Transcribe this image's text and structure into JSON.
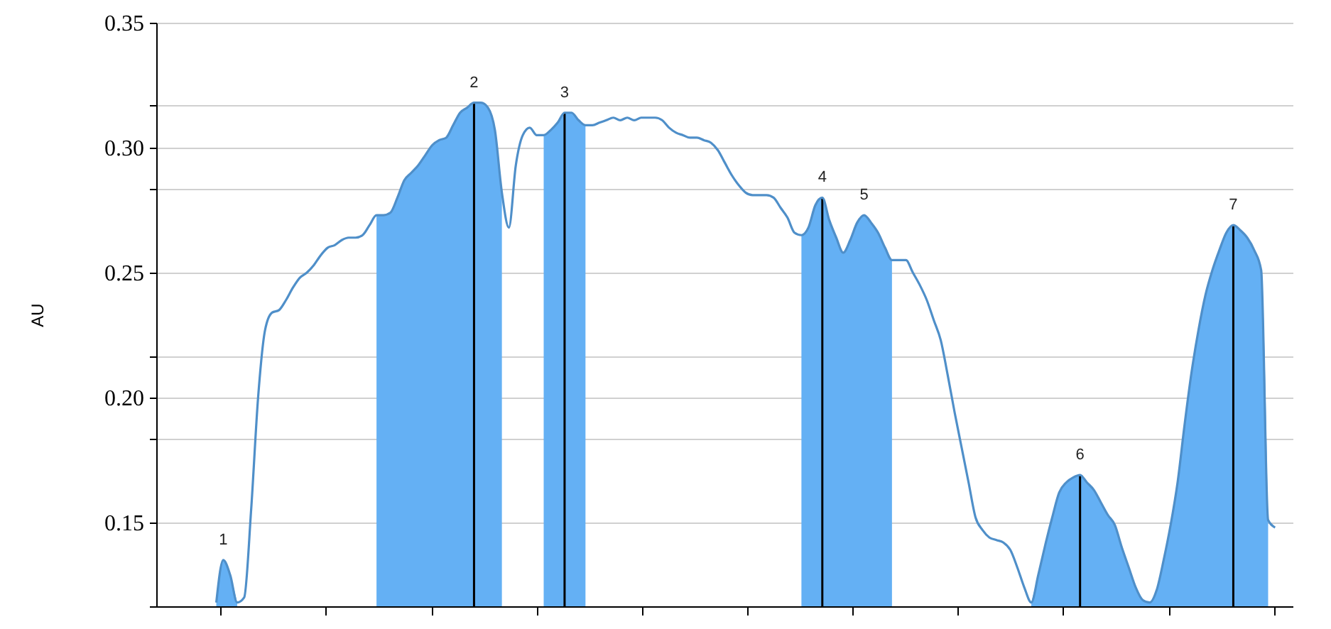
{
  "chart_data": {
    "type": "line",
    "ylabel": "AU",
    "categories": [
      null,
      null,
      null,
      null,
      null,
      null,
      null,
      null,
      null,
      null,
      null,
      null,
      null,
      null,
      null,
      null,
      null,
      null,
      null,
      null,
      null,
      null,
      null,
      null,
      null,
      null,
      null,
      null,
      null,
      null,
      null,
      null,
      null,
      null,
      null,
      null,
      null,
      null,
      null,
      null,
      null,
      null,
      null,
      null,
      null,
      null,
      null,
      null,
      null,
      null,
      null,
      null,
      null,
      null,
      null,
      null,
      null,
      null,
      null,
      null,
      null,
      null,
      null,
      null,
      null,
      null,
      null,
      null,
      null,
      null,
      null,
      null,
      null,
      null,
      null,
      null,
      null,
      null,
      null,
      null,
      null,
      null,
      null,
      null,
      null,
      null,
      null,
      null,
      null,
      null,
      null,
      null,
      null,
      null,
      null,
      null,
      null,
      null,
      null,
      null,
      null,
      null,
      null,
      null,
      null,
      null,
      null,
      null,
      null,
      null,
      null,
      null,
      null,
      null,
      null,
      null,
      null,
      null,
      null,
      null,
      null,
      null,
      null,
      null,
      null,
      null,
      null,
      null,
      null,
      null,
      null,
      null,
      null,
      null,
      null,
      null,
      null,
      null,
      null,
      null,
      null,
      null,
      null,
      null,
      null,
      null,
      null,
      null,
      null,
      null,
      null,
      null,
      null
    ],
    "ylim": [
      0.1165,
      0.35
    ],
    "yticks": [
      {
        "value": 0.35,
        "label": "0.35"
      },
      {
        "value": 0.3,
        "label": "0.30"
      },
      {
        "value": 0.25,
        "label": "0.25"
      },
      {
        "value": 0.2,
        "label": "0.20"
      },
      {
        "value": 0.15,
        "label": "0.15"
      },
      {
        "value": 0.317,
        "label": null
      },
      {
        "value": 0.2835,
        "label": null
      },
      {
        "value": 0.2165,
        "label": null
      },
      {
        "value": 0.1835,
        "label": null
      },
      {
        "value": 0.1165,
        "label": null
      }
    ],
    "grid": "y",
    "tick_labels": "y",
    "annotations": [
      {
        "text": "1",
        "y": 0.135
      },
      {
        "text": "2",
        "y": 0.318
      },
      {
        "text": "3",
        "y": 0.314
      },
      {
        "text": "4",
        "y": 0.28
      },
      {
        "text": "5",
        "y": 0.273
      },
      {
        "text": "6",
        "y": 0.169
      },
      {
        "text": "7",
        "y": 0.269
      }
    ],
    "series": [
      {
        "color": "#4f8fc9",
        "values": [
          0.118,
          0.135,
          0.129,
          0.118,
          0.12,
          0.155,
          0.2,
          0.227,
          0.234,
          0.235,
          0.239,
          0.244,
          0.248,
          0.25,
          0.253,
          0.257,
          0.26,
          0.261,
          0.263,
          0.264,
          0.264,
          0.265,
          0.269,
          0.273,
          0.273,
          0.274,
          0.28,
          0.287,
          0.29,
          0.293,
          0.297,
          0.301,
          0.303,
          0.304,
          0.309,
          0.314,
          0.316,
          0.318,
          0.318,
          0.316,
          0.307,
          0.282,
          0.268,
          0.293,
          0.305,
          0.308,
          0.305,
          0.305,
          0.307,
          0.31,
          0.314,
          0.314,
          0.311,
          0.309,
          0.309,
          0.31,
          0.311,
          0.312,
          0.311,
          0.312,
          0.311,
          0.312,
          0.312,
          0.312,
          0.311,
          0.308,
          0.306,
          0.305,
          0.304,
          0.304,
          0.303,
          0.302,
          0.299,
          0.294,
          0.289,
          0.285,
          0.282,
          0.281,
          0.281,
          0.281,
          0.28,
          0.276,
          0.272,
          0.266,
          0.265,
          0.268,
          0.277,
          0.28,
          0.271,
          0.264,
          0.258,
          0.263,
          0.27,
          0.273,
          0.27,
          0.266,
          0.26,
          0.255,
          0.255,
          0.255,
          0.25,
          0.245,
          0.239,
          0.231,
          0.223,
          0.209,
          0.194,
          0.18,
          0.166,
          0.152,
          0.147,
          0.144,
          0.143,
          0.142,
          0.139,
          0.132,
          0.124,
          0.118,
          0.129,
          0.141,
          0.152,
          0.162,
          0.166,
          0.168,
          0.169,
          0.166,
          0.163,
          0.158,
          0.153,
          0.149,
          0.14,
          0.132,
          0.124,
          0.119,
          0.118,
          0.123,
          0.135,
          0.149,
          0.166,
          0.189,
          0.21,
          0.227,
          0.241,
          0.251,
          0.259,
          0.266,
          0.269,
          0.267,
          0.264,
          0.259,
          0.251,
          0.151,
          0.148
        ]
      },
      {
        "type": "area",
        "color": "#64b0f4",
        "values": [
          0.118,
          0.135,
          0.129,
          0.118,
          null,
          null,
          null,
          null,
          null,
          null,
          null,
          null,
          null,
          null,
          null,
          null,
          null,
          null,
          null,
          null,
          null,
          null,
          null,
          0.273,
          0.273,
          0.274,
          0.28,
          0.287,
          0.29,
          0.293,
          0.297,
          0.301,
          0.303,
          0.304,
          0.309,
          0.314,
          0.316,
          0.318,
          0.318,
          0.316,
          0.307,
          0.282,
          null,
          null,
          null,
          null,
          null,
          0.305,
          0.307,
          0.31,
          0.314,
          0.314,
          0.311,
          0.309,
          null,
          null,
          null,
          null,
          null,
          null,
          null,
          null,
          null,
          null,
          null,
          null,
          null,
          null,
          null,
          null,
          null,
          null,
          null,
          null,
          null,
          null,
          null,
          null,
          null,
          null,
          null,
          null,
          null,
          null,
          0.265,
          0.268,
          0.277,
          0.28,
          0.271,
          0.264,
          0.258,
          0.263,
          0.27,
          0.273,
          0.27,
          0.266,
          0.26,
          0.255,
          null,
          null,
          null,
          null,
          null,
          null,
          null,
          null,
          null,
          null,
          null,
          null,
          null,
          null,
          null,
          null,
          null,
          null,
          null,
          0.118,
          0.129,
          0.141,
          0.152,
          0.162,
          0.166,
          0.168,
          0.169,
          0.166,
          0.163,
          0.158,
          0.153,
          0.149,
          0.14,
          0.132,
          0.124,
          0.119,
          0.118,
          0.123,
          0.135,
          0.149,
          0.166,
          0.189,
          0.21,
          0.227,
          0.241,
          0.251,
          0.259,
          0.266,
          0.269,
          0.267,
          0.264,
          0.259,
          0.251,
          0.151,
          null
        ]
      },
      {
        "type": "bar",
        "color": "#000000",
        "values": [
          null,
          null,
          null,
          null,
          null,
          null,
          null,
          null,
          null,
          null,
          null,
          null,
          null,
          null,
          null,
          null,
          null,
          null,
          null,
          null,
          null,
          null,
          null,
          null,
          null,
          null,
          null,
          null,
          null,
          null,
          null,
          null,
          null,
          null,
          null,
          null,
          null,
          0.318,
          null,
          null,
          null,
          null,
          null,
          null,
          null,
          null,
          null,
          null,
          null,
          null,
          0.314,
          null,
          null,
          null,
          null,
          null,
          null,
          null,
          null,
          null,
          null,
          null,
          null,
          null,
          null,
          null,
          null,
          null,
          null,
          null,
          null,
          null,
          null,
          null,
          null,
          null,
          null,
          null,
          null,
          null,
          null,
          null,
          null,
          null,
          null,
          null,
          null,
          0.28,
          null,
          null,
          null,
          null,
          null,
          null,
          null,
          null,
          null,
          null,
          null,
          null,
          null,
          null,
          null,
          null,
          null,
          null,
          null,
          null,
          null,
          null,
          null,
          null,
          null,
          null,
          null,
          null,
          null,
          null,
          null,
          null,
          null,
          null,
          null,
          null,
          0.169,
          null,
          null,
          null,
          null,
          null,
          null,
          null,
          null,
          null,
          null,
          null,
          null,
          null,
          null,
          null,
          null,
          null,
          null,
          null,
          null,
          null,
          0.269,
          null,
          null,
          null,
          null,
          null,
          null
        ]
      }
    ]
  }
}
